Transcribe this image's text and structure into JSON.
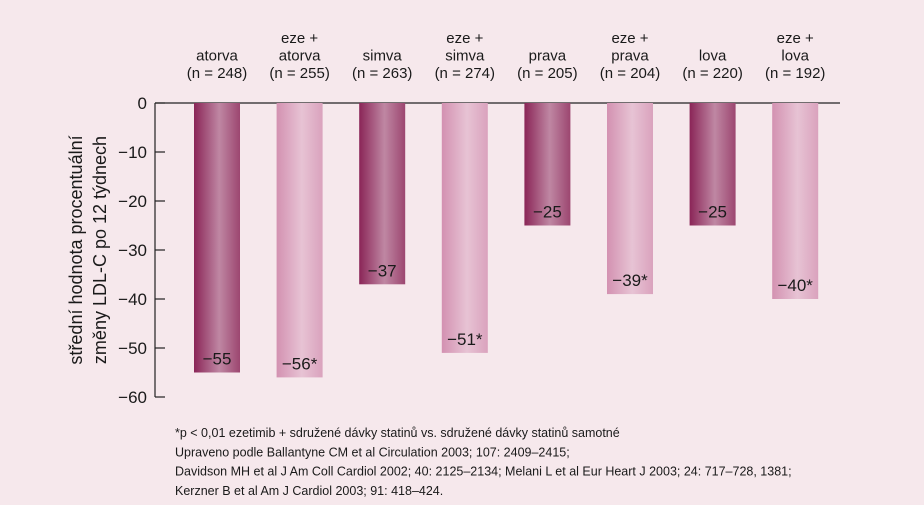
{
  "chart_data": {
    "type": "bar",
    "categories": [
      [
        "atorva",
        "(n = 248)"
      ],
      [
        "eze +",
        "atorva",
        "(n = 255)"
      ],
      [
        "simva",
        "(n = 263)"
      ],
      [
        "eze +",
        "simva",
        "(n = 274)"
      ],
      [
        "prava",
        "(n = 205)"
      ],
      [
        "eze +",
        "prava",
        "(n = 204)"
      ],
      [
        "lova",
        "(n = 220)"
      ],
      [
        "eze +",
        "lova",
        "(n = 192)"
      ]
    ],
    "values": [
      -55,
      -56,
      -37,
      -51,
      -25,
      -39,
      -25,
      -40
    ],
    "value_labels": [
      "−55",
      "−56*",
      "−37",
      "−51*",
      "−25",
      "−39*",
      "−25",
      "−40*"
    ],
    "colors": [
      "#8a2557",
      "#d391b1",
      "#8a2557",
      "#d391b1",
      "#8a2557",
      "#d391b1",
      "#8a2557",
      "#d391b1"
    ],
    "ylim": [
      0,
      -60
    ],
    "yticks": [
      0,
      {
        "value": -10,
        "label": "−10"
      },
      {
        "value": -20,
        "label": "−20"
      },
      {
        "value": -30,
        "label": "−30"
      },
      {
        "value": -40,
        "label": "−40"
      },
      {
        "value": -50,
        "label": "−50"
      },
      {
        "value": -60,
        "label": "−60"
      }
    ],
    "ylabel": [
      "střední hodnota procentuální",
      "změny LDL-C  po 12 týdnech"
    ],
    "footnotes": [
      "*p < 0,01 ezetimib + sdružené dávky statinů vs. sdružené dávky statinů samotné",
      "Upraveno podle Ballantyne CM et al Circulation 2003; 107: 2409–2415;",
      "Davidson MH et al J Am Coll Cardiol 2002; 40: 2125–2134; Melani L et al Eur Heart J 2003; 24: 717–728, 1381;",
      "Kerzner B et al Am J Cardiol 2003; 91: 418–424."
    ]
  }
}
